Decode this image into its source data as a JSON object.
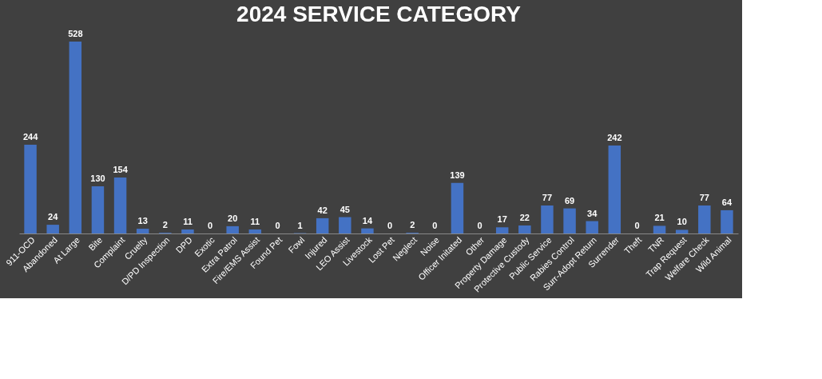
{
  "chart_data": {
    "type": "bar",
    "title": "2024 SERVICE CATEGORY",
    "categories": [
      "911-OCD",
      "Abandoned",
      "At Large",
      "Bite",
      "Complaint",
      "Cruelty",
      "D/PD Inspection",
      "DPD",
      "Exotic",
      "Extra Patrol",
      "Fire/EMS Assist",
      "Found Pet",
      "Fowl",
      "Injured",
      "LEO Assist",
      "Livestock",
      "Lost Pet",
      "Neglect",
      "Noise",
      "Officer Initated",
      "Other",
      "Property Damage",
      "Protective Custody",
      "Public Service",
      "Rabies Control",
      "Surr-Adopt Return",
      "Surrender",
      "Theft",
      "TNR",
      "Trap Request",
      "Welfare Check",
      "Wild Animal"
    ],
    "values": [
      244,
      24,
      528,
      130,
      154,
      13,
      2,
      11,
      0,
      20,
      11,
      0,
      1,
      42,
      45,
      14,
      0,
      2,
      0,
      139,
      0,
      17,
      22,
      77,
      69,
      34,
      242,
      0,
      21,
      10,
      77,
      64
    ],
    "color": "#4472c4",
    "data_labels": true,
    "grid": false,
    "tick_labels": "x"
  }
}
